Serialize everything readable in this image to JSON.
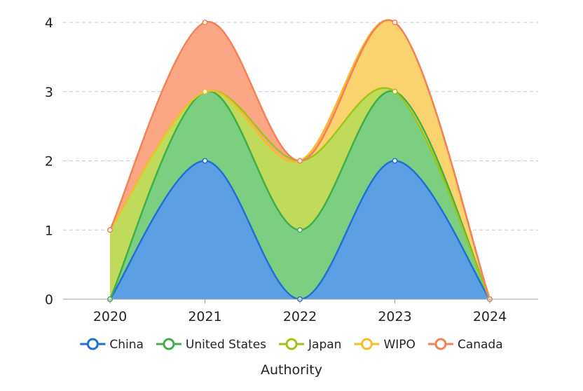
{
  "chart_data": {
    "type": "area",
    "stacked": true,
    "smooth": true,
    "categories": [
      "2020",
      "2021",
      "2022",
      "2023",
      "2024"
    ],
    "yticks": [
      "0",
      "1",
      "2",
      "3",
      "4"
    ],
    "ylim": [
      0,
      4
    ],
    "grid": true,
    "legend_position": "bottom",
    "xlabel": "Authority",
    "series": [
      {
        "name": "China",
        "values": [
          0,
          2,
          0,
          2,
          0
        ],
        "color": "#1f6fd6",
        "fill": "#5c9fe3"
      },
      {
        "name": "United States",
        "values": [
          0,
          1,
          1,
          1,
          0
        ],
        "color": "#3fae49",
        "fill": "#7ccf80"
      },
      {
        "name": "Japan",
        "values": [
          1,
          0,
          1,
          0,
          0
        ],
        "color": "#9cc51a",
        "fill": "#c0db5c"
      },
      {
        "name": "WIPO",
        "values": [
          0,
          0,
          0,
          1,
          0
        ],
        "color": "#f5bd2a",
        "fill": "#fbd36e"
      },
      {
        "name": "Canada",
        "values": [
          0,
          1,
          0,
          0,
          0
        ],
        "color": "#f4805a",
        "fill": "#fba786"
      }
    ]
  }
}
